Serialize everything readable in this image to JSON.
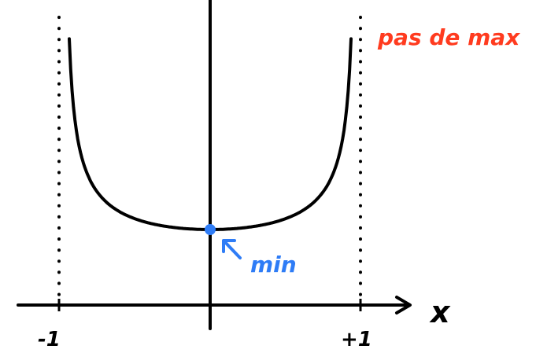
{
  "diagram": {
    "function_curve": "U-shaped curve with vertical asymptotes at x = -1 and x = +1",
    "asymptotes": [
      {
        "label": "-1",
        "x": -1
      },
      {
        "label": "+1",
        "x": 1
      }
    ],
    "axis_label_x": "x",
    "minimum": {
      "label": "min",
      "x": 0
    },
    "annotation": "pas de max",
    "colors": {
      "ink": "#000000",
      "accent_blue": "#2e7cf6",
      "annotation_red": "#ff3b1f"
    },
    "icons": [
      "arrow-right-icon",
      "arrow-up-left-icon"
    ]
  }
}
